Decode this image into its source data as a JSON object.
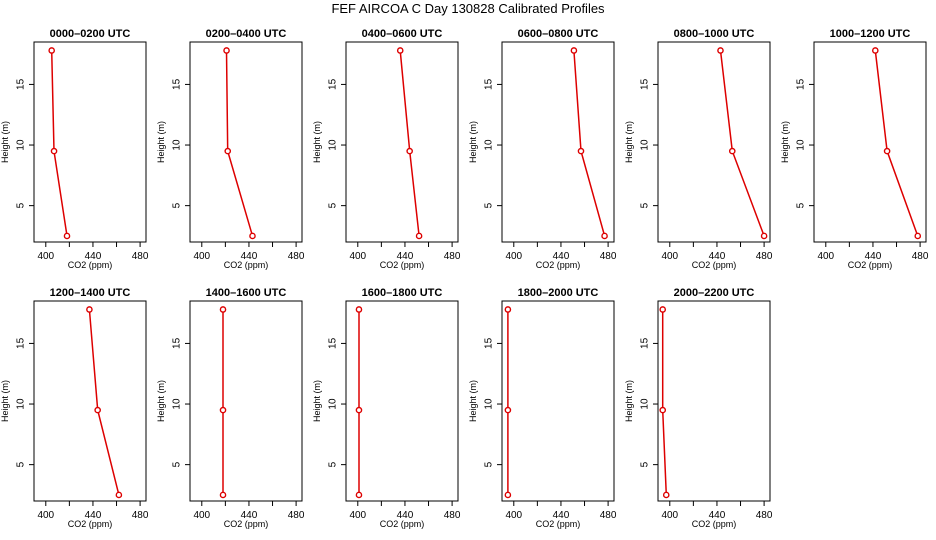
{
  "title": "FEF AIRCOA C  Day 130828  Calibrated Profiles",
  "chart_data": {
    "type": "line",
    "colors": {
      "series": "#dd0000",
      "frame": "#000000"
    },
    "xlabel": "CO2 (ppm)",
    "ylabel": "Height (m)",
    "xlim": [
      390,
      485
    ],
    "ylim": [
      2,
      18.5
    ],
    "xticks": [
      400,
      420,
      440,
      460,
      480
    ],
    "xtick_labels": [
      "400",
      "440",
      "480"
    ],
    "yticks": [
      5,
      10,
      15
    ],
    "y": [
      2.5,
      9.5,
      17.8
    ],
    "panels": [
      {
        "title": "0000–0200 UTC",
        "values": [
          418,
          407,
          405
        ]
      },
      {
        "title": "0200–0400 UTC",
        "values": [
          443,
          422,
          421
        ]
      },
      {
        "title": "0400–0600 UTC",
        "values": [
          452,
          444,
          436
        ]
      },
      {
        "title": "0600–0800 UTC",
        "values": [
          477,
          457,
          451
        ]
      },
      {
        "title": "0800–1000 UTC",
        "values": [
          480,
          453,
          443
        ]
      },
      {
        "title": "1000–1200 UTC",
        "values": [
          478,
          452,
          442
        ]
      },
      {
        "title": "1200–1400 UTC",
        "values": [
          462,
          444,
          437
        ]
      },
      {
        "title": "1400–1600 UTC",
        "values": [
          418,
          418,
          418
        ]
      },
      {
        "title": "1600–1800 UTC",
        "values": [
          401,
          401,
          401
        ]
      },
      {
        "title": "1800–2000 UTC",
        "values": [
          395,
          395,
          395
        ]
      },
      {
        "title": "2000–2200 UTC",
        "values": [
          397,
          394,
          394
        ]
      }
    ]
  }
}
